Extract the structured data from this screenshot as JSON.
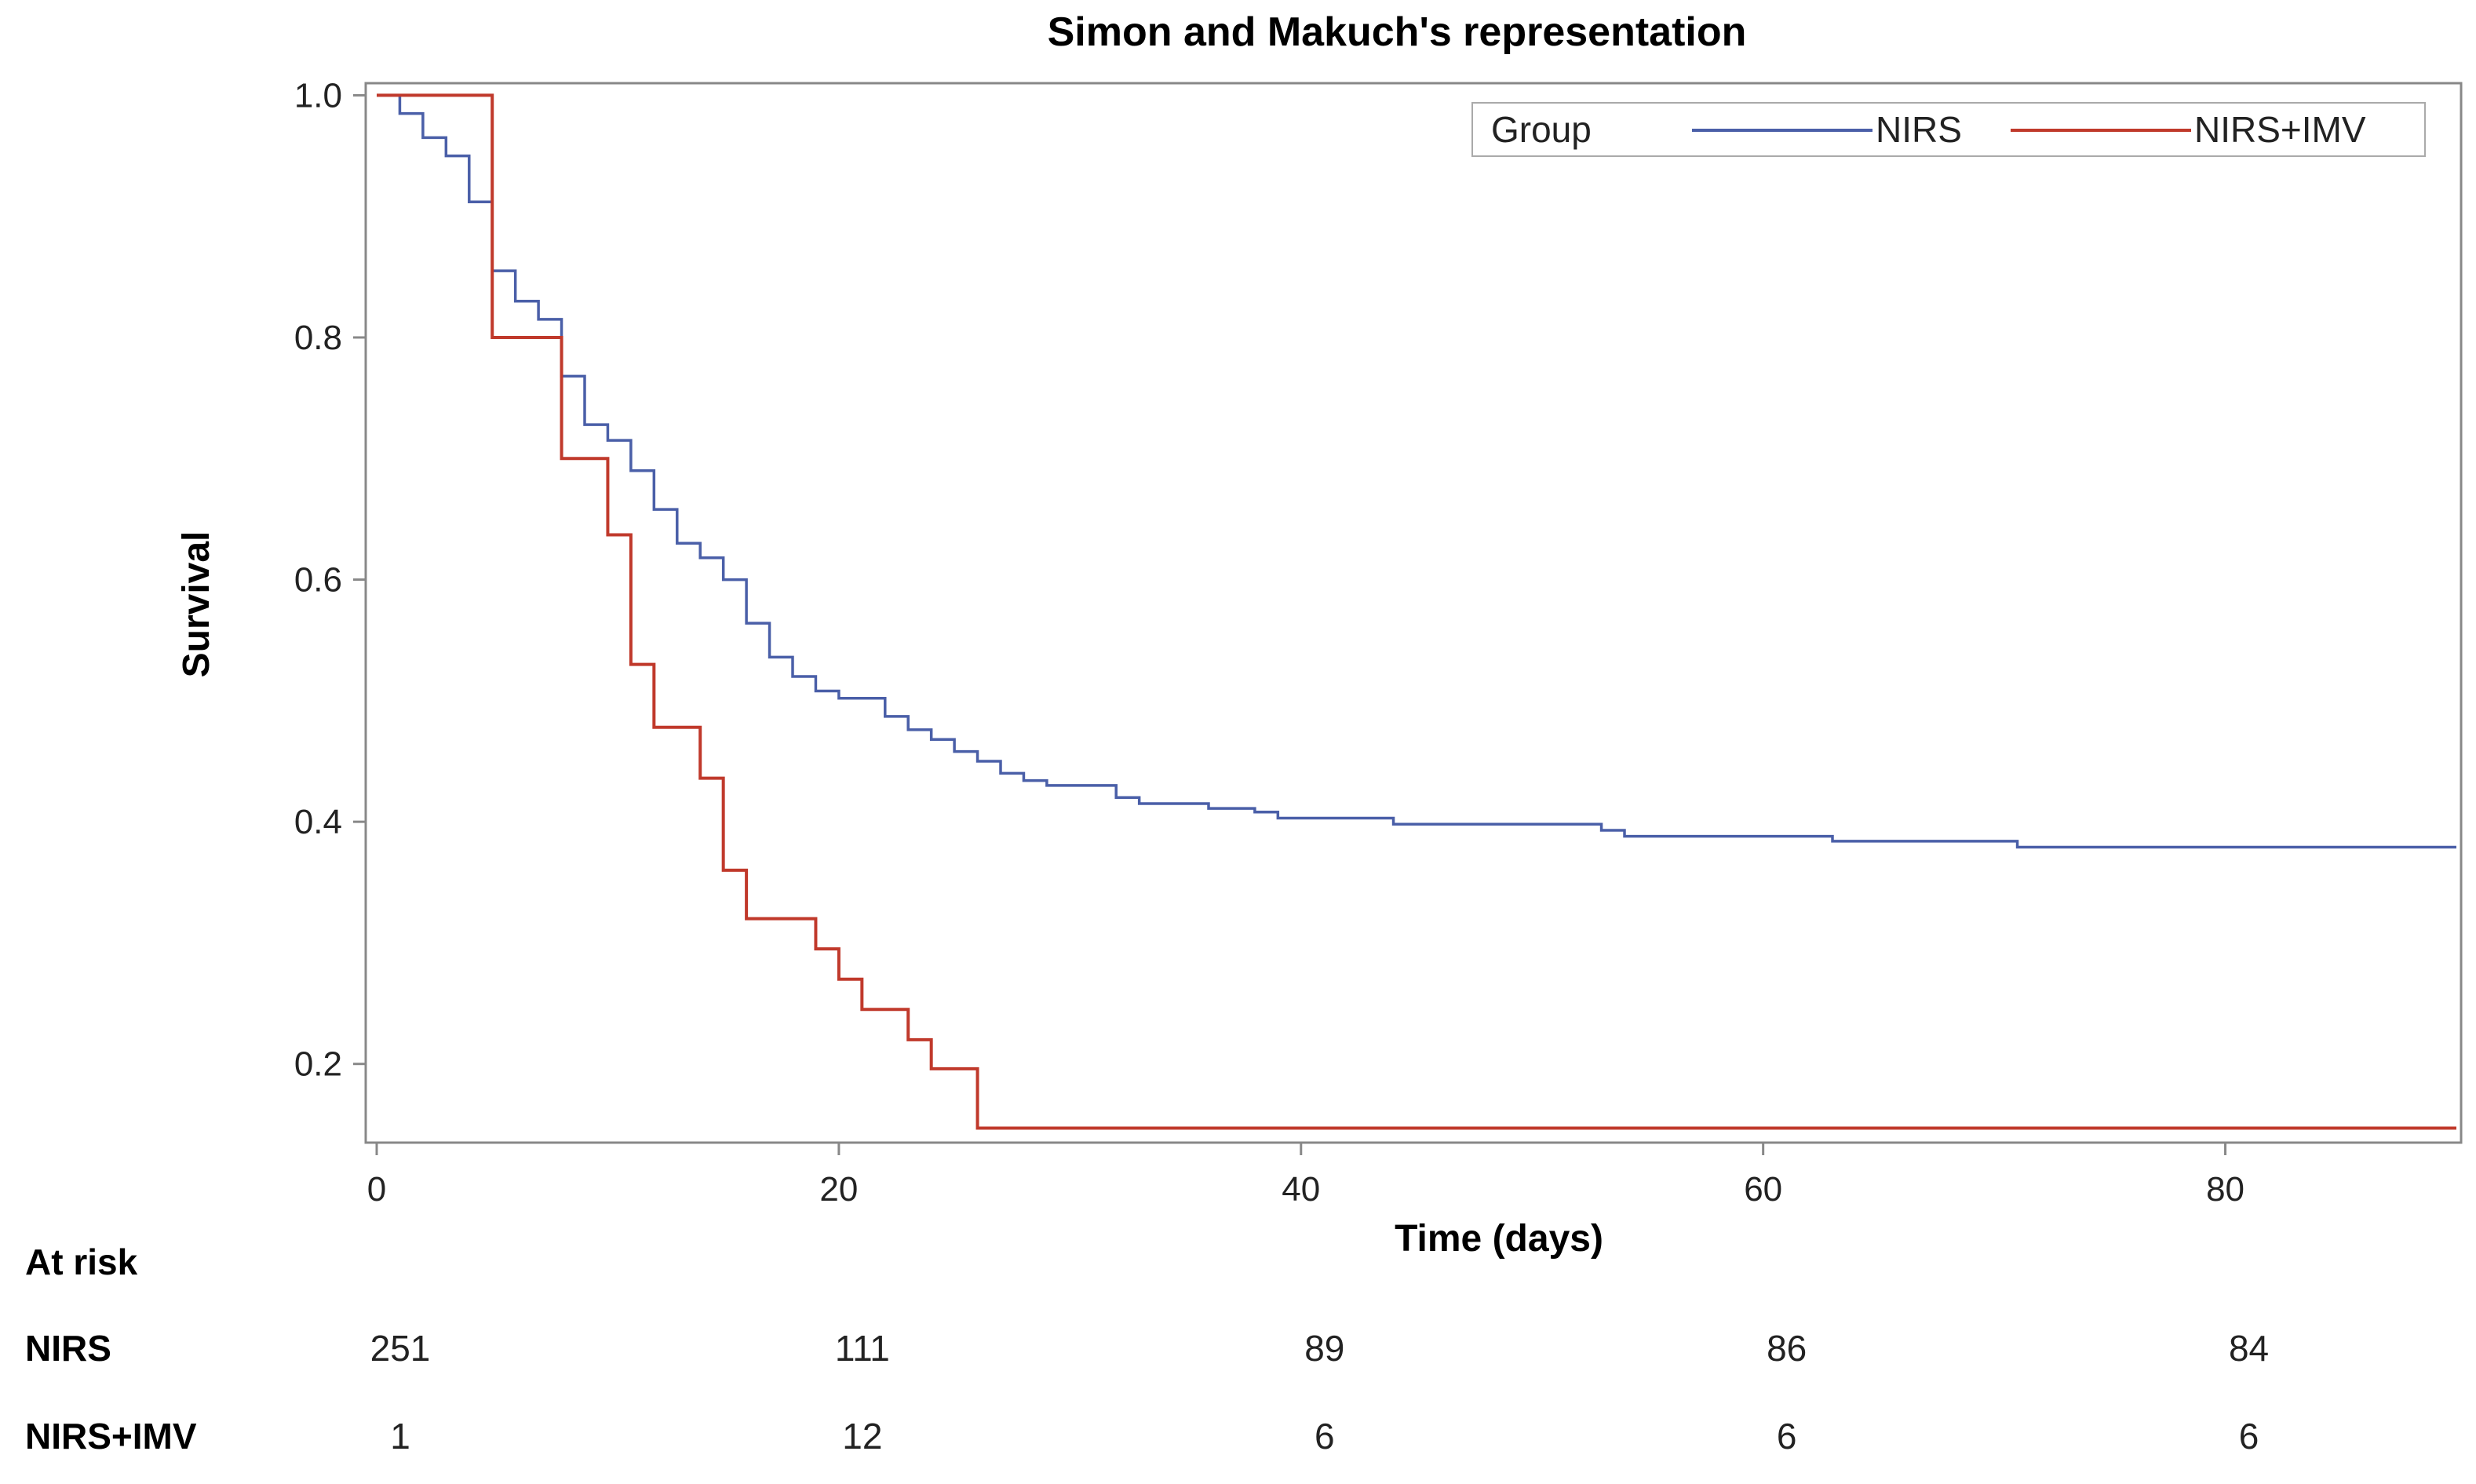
{
  "chart_data": {
    "type": "line",
    "step": true,
    "title": "Simon and Makuch's representation",
    "xlabel": "Time (days)",
    "ylabel": "Survival",
    "xlim": [
      0,
      90
    ],
    "ylim": [
      0.135,
      1.01
    ],
    "xticks": [
      0,
      20,
      40,
      60,
      80
    ],
    "yticks": [
      0.2,
      0.4,
      0.6,
      0.8,
      1.0
    ],
    "xtick_labels": [
      "0",
      "20",
      "40",
      "60",
      "80"
    ],
    "ytick_labels": [
      "0.2",
      "0.4",
      "0.6",
      "0.8",
      "1.0"
    ],
    "legend": {
      "title": "Group",
      "placement": "top-right",
      "entries": [
        "NIRS",
        "NIRS+IMV"
      ]
    },
    "series": [
      {
        "name": "NIRS",
        "color": "#4a5fa8",
        "x": [
          0,
          1,
          2,
          3,
          4,
          5,
          6,
          7,
          8,
          9,
          10,
          11,
          12,
          13,
          14,
          15,
          16,
          17,
          18,
          19,
          20,
          22,
          23,
          24,
          25,
          26,
          27,
          28,
          29,
          32,
          33,
          36,
          38,
          39,
          44,
          53,
          54,
          63,
          71,
          90
        ],
        "y": [
          1.0,
          0.985,
          0.965,
          0.95,
          0.912,
          0.855,
          0.83,
          0.815,
          0.768,
          0.728,
          0.715,
          0.69,
          0.658,
          0.63,
          0.618,
          0.6,
          0.564,
          0.536,
          0.52,
          0.508,
          0.502,
          0.487,
          0.476,
          0.468,
          0.458,
          0.45,
          0.44,
          0.434,
          0.43,
          0.42,
          0.415,
          0.411,
          0.408,
          0.403,
          0.398,
          0.393,
          0.388,
          0.384,
          0.379,
          0.379
        ]
      },
      {
        "name": "NIRS+IMV",
        "color": "#c0392b",
        "x": [
          0,
          5,
          8,
          10,
          11,
          12,
          14,
          15,
          16,
          19,
          20,
          21,
          23,
          24,
          26,
          90
        ],
        "y": [
          1.0,
          0.8,
          0.7,
          0.637,
          0.53,
          0.478,
          0.436,
          0.36,
          0.32,
          0.295,
          0.27,
          0.245,
          0.22,
          0.196,
          0.147,
          0.147
        ]
      }
    ]
  },
  "at_risk": {
    "header": "At risk",
    "rows": [
      {
        "label": "NIRS",
        "values": [
          "251",
          "111",
          "89",
          "86",
          "84"
        ]
      },
      {
        "label": "NIRS+IMV",
        "values": [
          "1",
          "12",
          "6",
          "6",
          "6"
        ]
      }
    ]
  }
}
